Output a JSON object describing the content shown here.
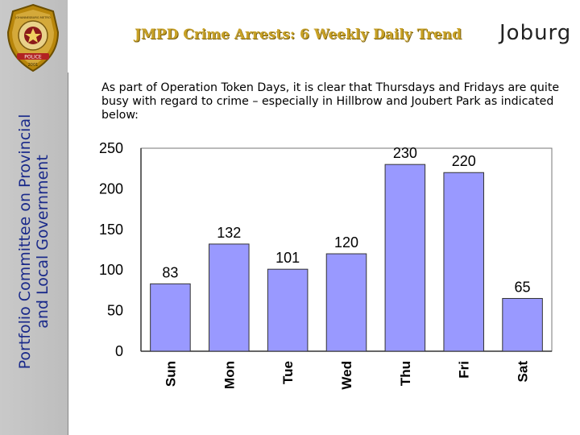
{
  "header": {
    "title": "JMPD Crime Arrests: 6 Weekly Daily Trend",
    "logo_text": "Joburg",
    "badge_top": "JOHANNESBURG METRO",
    "badge_bottom": "POLICE",
    "badge_year": "2001"
  },
  "sidebar": {
    "line1": "Portfolio  Committee on Provincial",
    "line2": "and Local Government"
  },
  "intro": "As part of Operation Token Days, it is clear that Thursdays and Fridays are quite busy with regard to crime – especially in Hillbrow and Joubert Park as indicated below:",
  "colors": {
    "bar": "#9999ff",
    "bar_stroke": "#333333",
    "title": "#c9a227"
  },
  "chart_data": {
    "type": "bar",
    "categories": [
      "Sun",
      "Mon",
      "Tue",
      "Wed",
      "Thu",
      "Fri",
      "Sat"
    ],
    "values": [
      83,
      132,
      101,
      120,
      230,
      220,
      65
    ],
    "yticks": [
      "0",
      "50",
      "100",
      "150",
      "200",
      "250"
    ],
    "ylim": [
      0,
      250
    ],
    "grid": false,
    "legend": "none"
  }
}
